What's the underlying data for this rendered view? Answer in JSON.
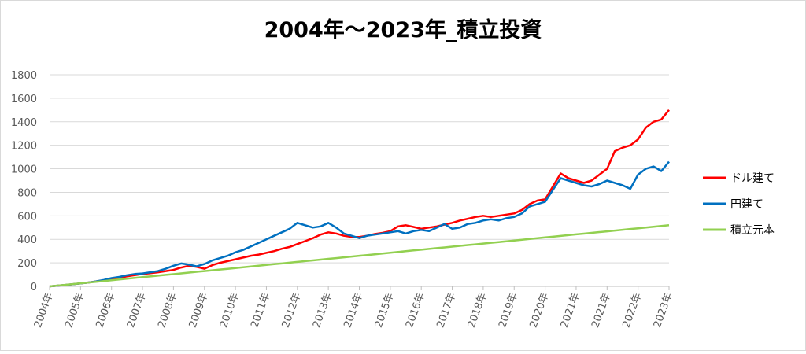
{
  "chart_data": {
    "type": "line",
    "title": "2004年～2023年_積立投資",
    "categories": [
      "2004年",
      null,
      null,
      null,
      "2005年",
      null,
      null,
      null,
      "2006年",
      null,
      null,
      null,
      "2007年",
      null,
      null,
      null,
      "2008年",
      null,
      null,
      null,
      "2009年",
      null,
      null,
      null,
      "2010年",
      null,
      null,
      null,
      "2011年",
      null,
      null,
      null,
      "2012年",
      null,
      null,
      null,
      "2013年",
      null,
      null,
      null,
      "2014年",
      null,
      null,
      null,
      "2015年",
      null,
      null,
      null,
      "2016年",
      null,
      null,
      null,
      "2017年",
      null,
      null,
      null,
      "2018年",
      null,
      null,
      null,
      "2019年",
      null,
      null,
      null,
      "2020年",
      null,
      null,
      null,
      "2021年",
      null,
      null,
      null,
      "2021年",
      null,
      null,
      null,
      "2022年",
      null,
      null,
      null,
      "2023年"
    ],
    "series": [
      {
        "name": "ドル建て",
        "color": "#ff0000",
        "values": [
          0,
          6,
          12,
          18,
          25,
          33,
          42,
          52,
          62,
          72,
          85,
          95,
          105,
          112,
          120,
          130,
          140,
          160,
          175,
          165,
          150,
          180,
          200,
          215,
          230,
          245,
          260,
          270,
          285,
          300,
          320,
          335,
          360,
          385,
          410,
          440,
          460,
          450,
          430,
          420,
          420,
          430,
          445,
          455,
          470,
          510,
          520,
          505,
          490,
          500,
          510,
          525,
          540,
          560,
          575,
          590,
          600,
          590,
          600,
          610,
          620,
          650,
          700,
          730,
          740,
          850,
          960,
          920,
          900,
          880,
          900,
          950,
          1000,
          1150,
          1180,
          1200,
          1250,
          1350,
          1400,
          1420,
          1500
        ]
      },
      {
        "name": "円建て",
        "color": "#0070c0",
        "values": [
          0,
          6,
          12,
          18,
          25,
          33,
          42,
          55,
          70,
          80,
          95,
          105,
          110,
          120,
          130,
          150,
          175,
          195,
          185,
          170,
          190,
          220,
          240,
          260,
          290,
          310,
          340,
          370,
          400,
          430,
          460,
          490,
          540,
          520,
          500,
          510,
          540,
          500,
          450,
          430,
          410,
          430,
          440,
          450,
          460,
          470,
          450,
          470,
          480,
          470,
          500,
          530,
          490,
          500,
          530,
          540,
          560,
          570,
          560,
          580,
          590,
          620,
          680,
          700,
          720,
          820,
          920,
          900,
          880,
          860,
          850,
          870,
          900,
          880,
          860,
          830,
          950,
          1000,
          1020,
          980,
          1060
        ]
      },
      {
        "name": "積立元本",
        "color": "#92d050",
        "values": [
          0,
          6.5,
          13,
          19.5,
          26,
          32.5,
          39,
          45.5,
          52,
          58.5,
          65,
          71.5,
          78,
          84.5,
          91,
          97.5,
          104,
          110.5,
          117,
          123.5,
          130,
          136.5,
          143,
          149.5,
          156,
          162.5,
          169,
          175.5,
          182,
          188.5,
          195,
          201.5,
          208,
          214.5,
          221,
          227.5,
          234,
          240.5,
          247,
          253.5,
          260,
          266.5,
          273,
          279.5,
          286,
          292.5,
          299,
          305.5,
          312,
          318.5,
          325,
          331.5,
          338,
          344.5,
          351,
          357.5,
          364,
          370.5,
          377,
          383.5,
          390,
          396.5,
          403,
          409.5,
          416,
          422.5,
          429,
          435.5,
          442,
          448.5,
          455,
          461.5,
          468,
          474.5,
          481,
          487.5,
          494,
          500.5,
          507,
          513.5,
          520
        ]
      }
    ],
    "ylim": [
      0,
      1800
    ],
    "yticks": [
      0,
      200,
      400,
      600,
      800,
      1000,
      1200,
      1400,
      1600,
      1800
    ],
    "grid": true,
    "legend": "right"
  }
}
